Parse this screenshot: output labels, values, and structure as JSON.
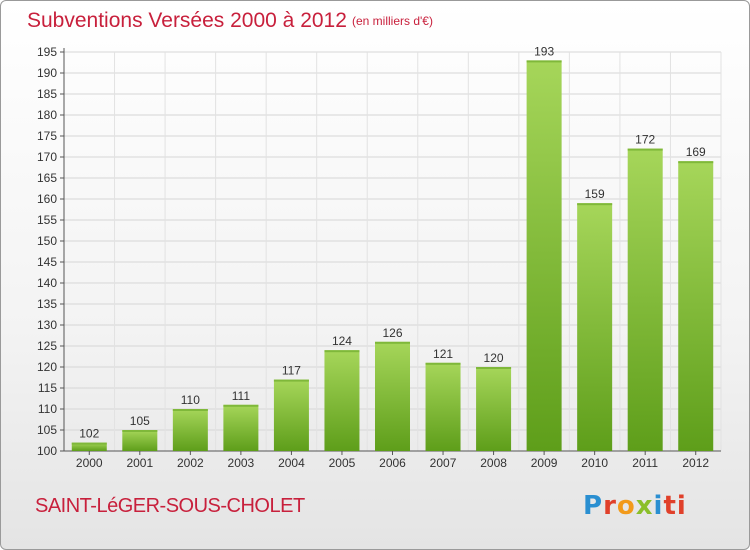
{
  "header": {
    "title": "Subventions Versées 2000 à 2012",
    "subtitle": "(en milliers d'€)"
  },
  "footer": {
    "commune": "SAINT-LéGER-SOUS-CHOLET",
    "brand_letters": [
      "P",
      "r",
      "o",
      "x",
      "i",
      "ti"
    ]
  },
  "colors": {
    "title": "#c8203c",
    "bar_light": "#a6d65a",
    "bar_dark": "#5e9e1a"
  },
  "chart_data": {
    "type": "bar",
    "title": "Subventions Versées 2000 à 2012",
    "subtitle": "(en milliers d'€)",
    "categories": [
      "2000",
      "2001",
      "2002",
      "2003",
      "2004",
      "2005",
      "2006",
      "2007",
      "2008",
      "2009",
      "2010",
      "2011",
      "2012"
    ],
    "values": [
      102,
      105,
      110,
      111,
      117,
      124,
      126,
      121,
      120,
      193,
      159,
      172,
      169
    ],
    "ylim": [
      100,
      195
    ],
    "yticks": [
      100,
      105,
      110,
      115,
      120,
      125,
      130,
      135,
      140,
      145,
      150,
      155,
      160,
      165,
      170,
      175,
      180,
      185,
      190,
      195
    ],
    "grid": true,
    "data_labels": true
  }
}
